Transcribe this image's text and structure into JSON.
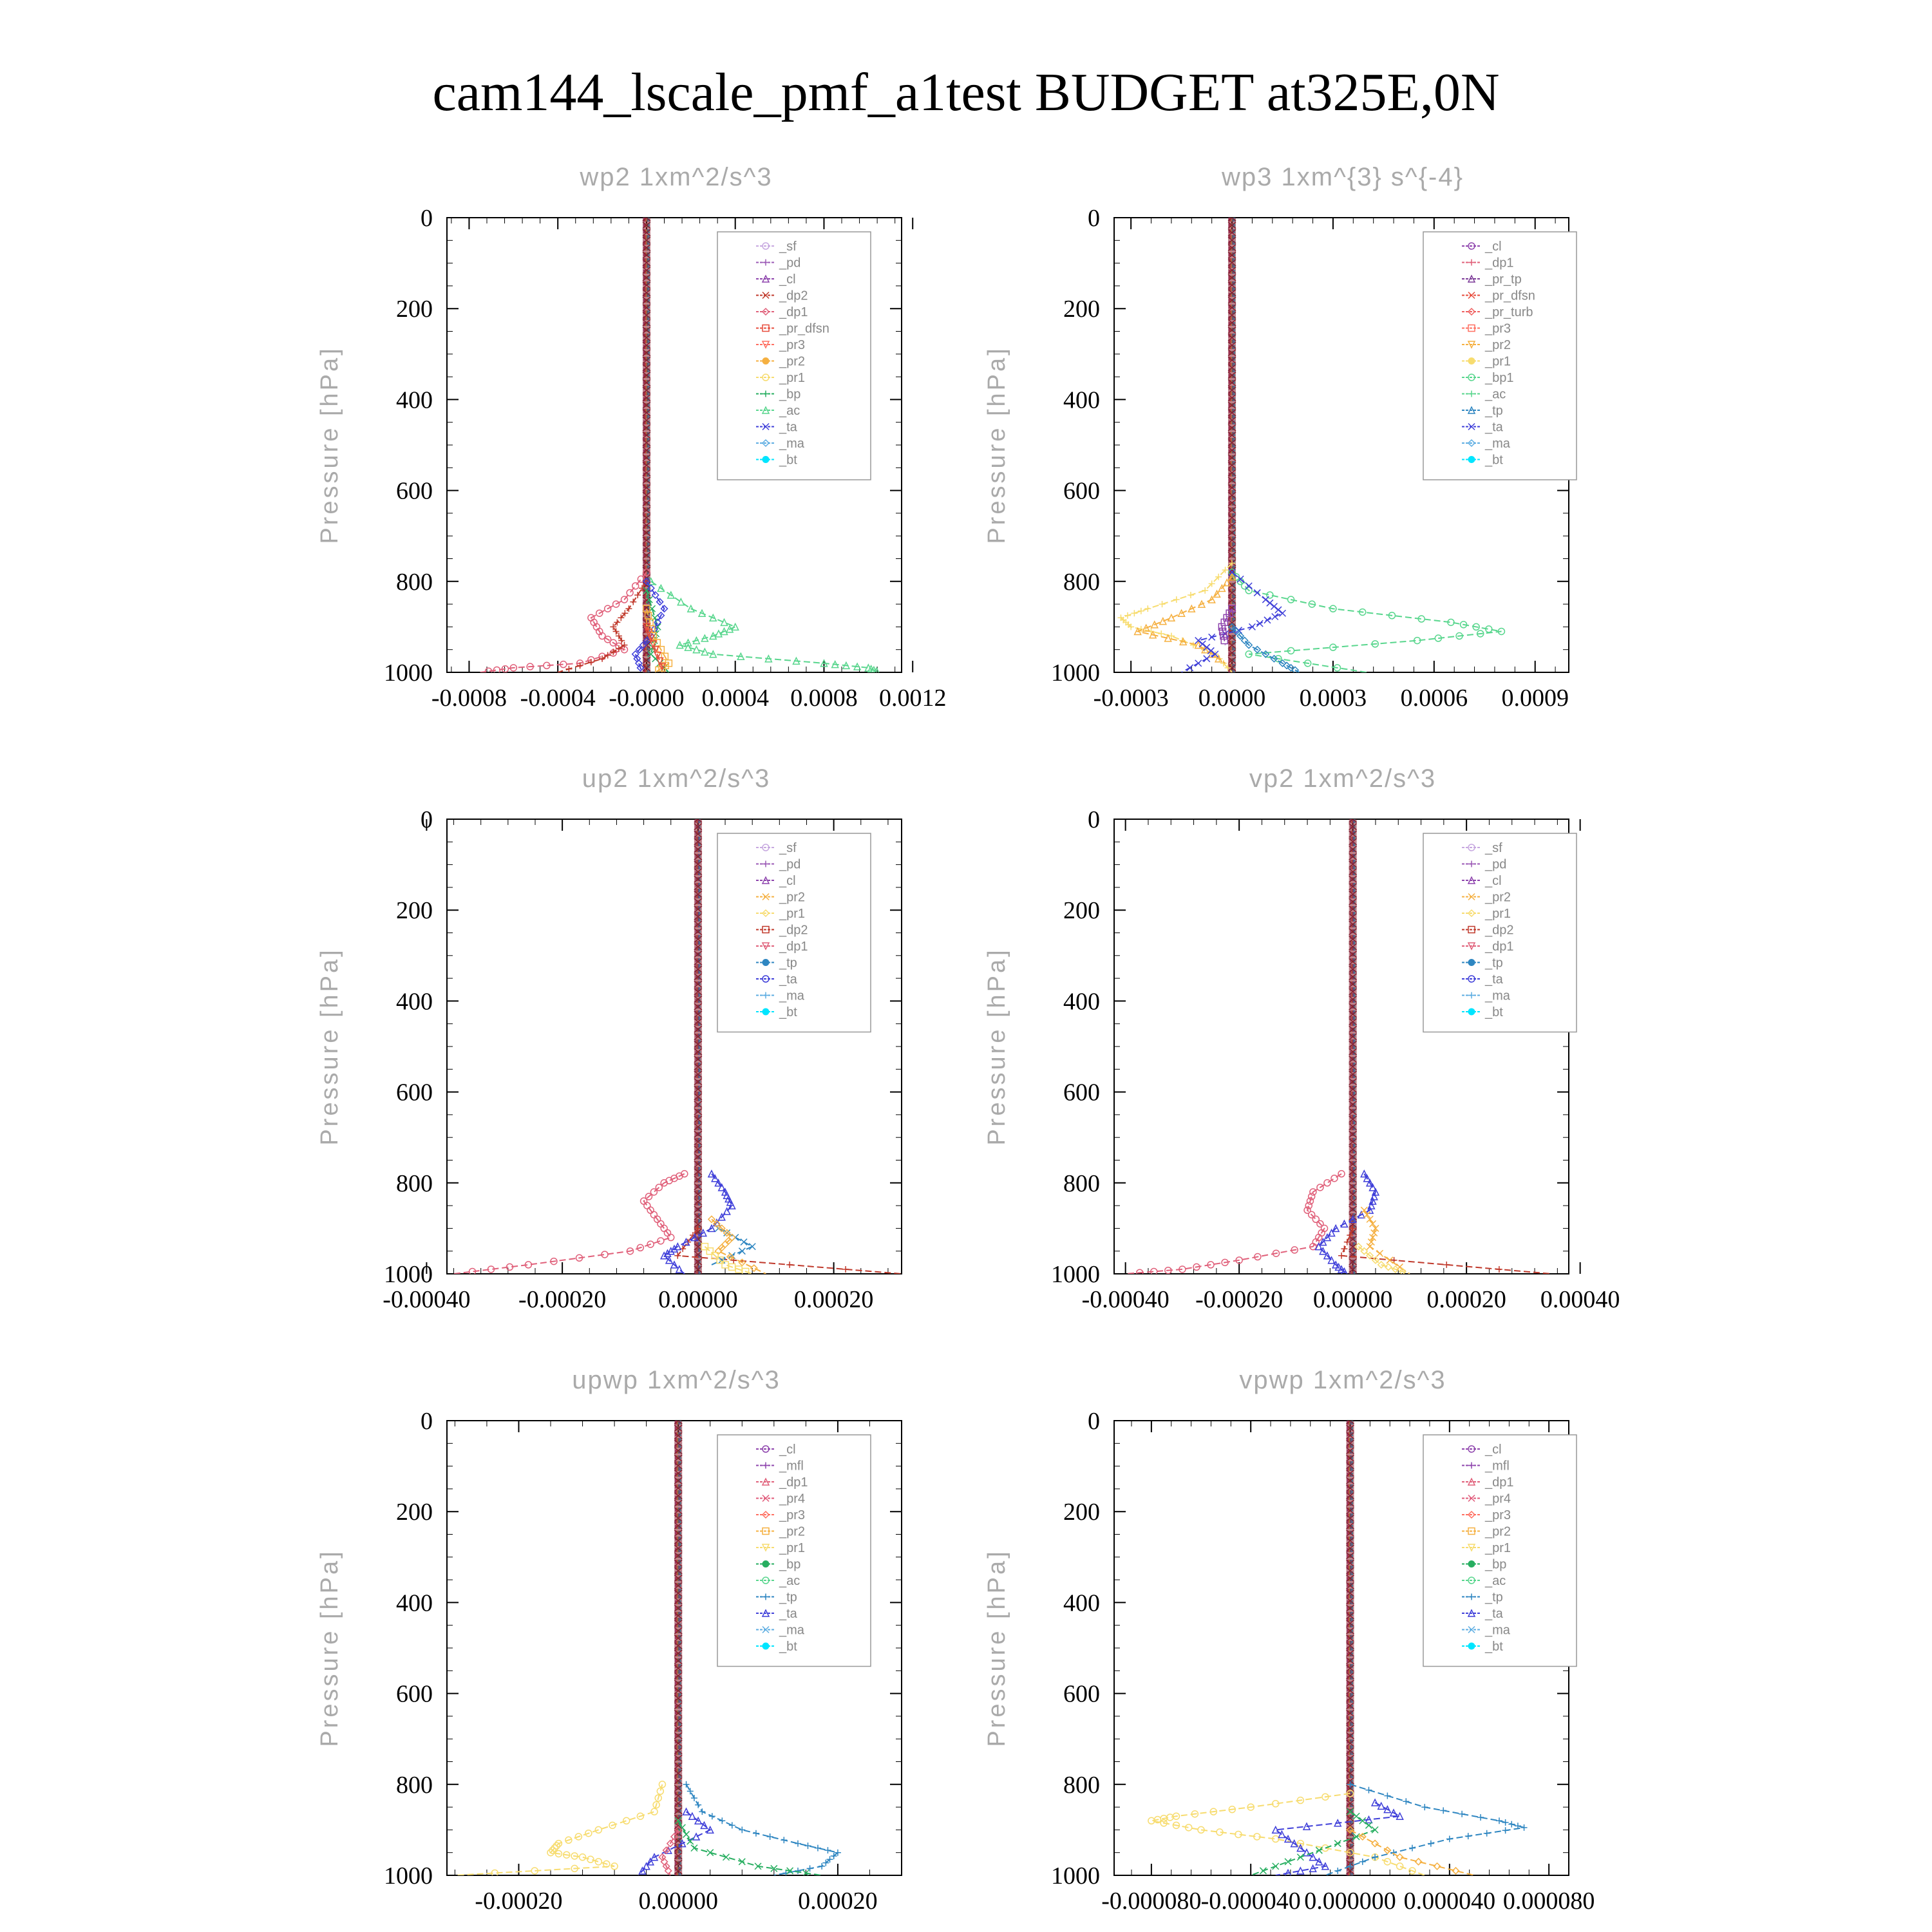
{
  "title": "cam144_lscale_pmf_a1test  BUDGET at325E,0N",
  "colors": {
    "_sf": "#c7a8e0",
    "_pd": "#9b59b6",
    "_cl": "#8e44ad",
    "_dp2": "#c0392b",
    "_dp1": "#e0607a",
    "_pr_dfsn": "#e74c3c",
    "_pr_tp": "#7d3c98",
    "_pr_turb": "#ef6060",
    "_pr3": "#ff6f61",
    "_pr2": "#f5b041",
    "_pr1": "#f7dc6f",
    "_pr4": "#e05a7a",
    "_bp": "#27ae60",
    "_bp1": "#58d68d",
    "_ac": "#58d68d",
    "_tp": "#2e86c1",
    "_ta": "#3f3fd9",
    "_ma": "#5dade2",
    "_bt": "#00e5ff",
    "_mfl": "#8e44ad"
  },
  "chart_data": [
    {
      "type": "line",
      "title": "wp2   1xm^2/s^3",
      "ylabel": "Pressure [hPa]",
      "ylim": [
        1000,
        0
      ],
      "xlim": [
        -0.0009,
        0.00115
      ],
      "xticks": [
        "-0.0008",
        "-0.0004",
        "-0.0000",
        "0.0004",
        "0.0008",
        "0.0012"
      ],
      "xtick_values": [
        -0.0008,
        -0.0004,
        0.0,
        0.0004,
        0.0008,
        0.0012
      ],
      "yticks": [
        "0",
        "200",
        "400",
        "600",
        "800",
        "1000"
      ],
      "legend": [
        "_sf",
        "_pd",
        "_cl",
        "_dp2",
        "_dp1",
        "_pr_dfsn",
        "_pr3",
        "_pr2",
        "_pr1",
        "_bp",
        "_ac",
        "_ta",
        "_ma",
        "_bt"
      ],
      "series": [
        {
          "name": "_dp1",
          "p": [
            780,
            840,
            880,
            920,
            950,
            980,
            990,
            1000
          ],
          "x": [
            0,
            -0.0001,
            -0.00025,
            -0.0002,
            -0.0001,
            -0.0003,
            -0.0006,
            -0.00075
          ]
        },
        {
          "name": "_dp2",
          "p": [
            800,
            860,
            900,
            940,
            970,
            1000
          ],
          "x": [
            0,
            -8e-05,
            -0.00015,
            -0.0001,
            -0.0002,
            -0.0004
          ]
        },
        {
          "name": "_ac",
          "p": [
            800,
            860,
            900,
            920,
            940,
            960,
            980,
            990,
            1000
          ],
          "x": [
            2e-05,
            0.0002,
            0.0004,
            0.0003,
            0.00015,
            0.0003,
            0.0008,
            0.001,
            0.00105
          ]
        },
        {
          "name": "_bp",
          "p": [
            820,
            900,
            960,
            1000
          ],
          "x": [
            0,
            5e-05,
            2e-05,
            0.0001
          ]
        },
        {
          "name": "_ta",
          "p": [
            800,
            860,
            920,
            960,
            1000
          ],
          "x": [
            0,
            8e-05,
            2e-05,
            -5e-05,
            -2e-05
          ]
        },
        {
          "name": "_pr2",
          "p": [
            860,
            920,
            980,
            1000
          ],
          "x": [
            0,
            3e-05,
            0.0001,
            4e-05
          ]
        },
        {
          "name": "_pr_dfsn",
          "p": [
            900,
            950,
            1000
          ],
          "x": [
            0,
            4e-05,
            8e-05
          ]
        }
      ]
    },
    {
      "type": "line",
      "title": "wp3   1xm^{3} s^{-4}",
      "ylabel": "Pressure [hPa]",
      "ylim": [
        1000,
        0
      ],
      "xlim": [
        -0.00035,
        0.001
      ],
      "xticks": [
        "-0.0003",
        "0.0000",
        "0.0003",
        "0.0006",
        "0.0009"
      ],
      "xtick_values": [
        -0.0003,
        0.0,
        0.0003,
        0.0006,
        0.0009
      ],
      "yticks": [
        "0",
        "200",
        "400",
        "600",
        "800",
        "1000"
      ],
      "legend": [
        "_cl",
        "_dp1",
        "_pr_tp",
        "_pr_dfsn",
        "_pr_turb",
        "_pr3",
        "_pr2",
        "_pr1",
        "_bp1",
        "_ac",
        "_tp",
        "_ta",
        "_ma",
        "_bt"
      ],
      "series": [
        {
          "name": "_bp1",
          "p": [
            780,
            820,
            860,
            890,
            910,
            930,
            960,
            1000
          ],
          "x": [
            0,
            5e-05,
            0.0003,
            0.00065,
            0.0008,
            0.00055,
            5e-05,
            0.0004
          ]
        },
        {
          "name": "_pr1",
          "p": [
            760,
            820,
            860,
            880,
            900,
            920,
            960,
            1000
          ],
          "x": [
            0,
            -8e-05,
            -0.00025,
            -0.00033,
            -0.0003,
            -0.00018,
            -5e-05,
            0
          ]
        },
        {
          "name": "_pr2",
          "p": [
            790,
            840,
            880,
            910,
            940,
            980
          ],
          "x": [
            0,
            -6e-05,
            -0.00018,
            -0.00028,
            -0.0001,
            -2e-05
          ]
        },
        {
          "name": "_ta",
          "p": [
            780,
            840,
            870,
            900,
            930,
            960,
            1000
          ],
          "x": [
            0,
            0.0001,
            0.00015,
            6e-05,
            -0.0001,
            -5e-05,
            -0.00015
          ]
        },
        {
          "name": "_tp",
          "p": [
            900,
            940,
            980,
            1000
          ],
          "x": [
            0,
            5e-05,
            0.00015,
            0.0002
          ]
        },
        {
          "name": "_cl",
          "p": [
            860,
            900,
            940
          ],
          "x": [
            0,
            -3e-05,
            -2e-05
          ]
        }
      ]
    },
    {
      "type": "line",
      "title": "up2   1xm^2/s^3",
      "ylabel": "Pressure [hPa]",
      "ylim": [
        1000,
        0
      ],
      "xlim": [
        -0.00037,
        0.0003
      ],
      "xticks": [
        "-0.00040",
        "-0.00020",
        "0.00000",
        "0.00020"
      ],
      "xtick_values": [
        -0.0004,
        -0.0002,
        0.0,
        0.0002
      ],
      "yticks": [
        "0",
        "200",
        "400",
        "600",
        "800",
        "1000"
      ],
      "legend": [
        "_sf",
        "_pd",
        "_cl",
        "_pr2",
        "_pr1",
        "_dp2",
        "_dp1",
        "_tp",
        "_ta",
        "_ma",
        "_bt"
      ],
      "series": [
        {
          "name": "_dp1",
          "p": [
            780,
            800,
            840,
            880,
            920,
            950,
            980,
            1000
          ],
          "x": [
            -2e-05,
            -5e-05,
            -8e-05,
            -6e-05,
            -4e-05,
            -0.0001,
            -0.00025,
            -0.00036
          ]
        },
        {
          "name": "_dp2",
          "p": [
            900,
            960,
            1000
          ],
          "x": [
            0,
            -3e-05,
            0.0003
          ]
        },
        {
          "name": "_ta",
          "p": [
            780,
            820,
            850,
            900,
            940,
            960,
            1000
          ],
          "x": [
            2e-05,
            4e-05,
            5e-05,
            2e-05,
            -3e-05,
            -5e-05,
            -2e-05
          ]
        },
        {
          "name": "_tp",
          "p": [
            900,
            940,
            980
          ],
          "x": [
            3e-05,
            8e-05,
            2e-05
          ]
        },
        {
          "name": "_pr2",
          "p": [
            880,
            920,
            950,
            1000
          ],
          "x": [
            2e-05,
            5e-05,
            3e-05,
            0.0001
          ]
        },
        {
          "name": "_pr1",
          "p": [
            940,
            980,
            1000
          ],
          "x": [
            1e-05,
            4e-05,
            8e-05
          ]
        }
      ]
    },
    {
      "type": "line",
      "title": "vp2   1xm^2/s^3",
      "ylabel": "Pressure [hPa]",
      "ylim": [
        1000,
        0
      ],
      "xlim": [
        -0.00042,
        0.00038
      ],
      "xticks": [
        "-0.00040",
        "-0.00020",
        "0.00000",
        "0.00020",
        "0.00040"
      ],
      "xtick_values": [
        -0.0004,
        -0.0002,
        0.0,
        0.0002,
        0.0004
      ],
      "yticks": [
        "0",
        "200",
        "400",
        "600",
        "800",
        "1000"
      ],
      "legend": [
        "_sf",
        "_pd",
        "_cl",
        "_pr2",
        "_pr1",
        "_dp2",
        "_dp1",
        "_tp",
        "_ta",
        "_ma",
        "_bt"
      ],
      "series": [
        {
          "name": "_dp1",
          "p": [
            780,
            820,
            860,
            900,
            940,
            970,
            990,
            1000
          ],
          "x": [
            -2e-05,
            -7e-05,
            -8e-05,
            -5e-05,
            -7e-05,
            -0.0002,
            -0.0003,
            -0.0004
          ]
        },
        {
          "name": "_dp2",
          "p": [
            900,
            960,
            1000
          ],
          "x": [
            0,
            -2e-05,
            0.00035
          ]
        },
        {
          "name": "_ta",
          "p": [
            780,
            820,
            860,
            900,
            940,
            980,
            1000
          ],
          "x": [
            2e-05,
            4e-05,
            3e-05,
            -3e-05,
            -6e-05,
            -3e-05,
            -1e-05
          ]
        },
        {
          "name": "_pr2",
          "p": [
            860,
            900,
            940,
            1000
          ],
          "x": [
            2e-05,
            4e-05,
            3e-05,
            0.0001
          ]
        },
        {
          "name": "_pr1",
          "p": [
            940,
            980,
            1000
          ],
          "x": [
            1e-05,
            5e-05,
            0.0001
          ]
        }
      ]
    },
    {
      "type": "line",
      "title": "upwp   1xm^2/s^3",
      "ylabel": "Pressure [hPa]",
      "ylim": [
        1000,
        0
      ],
      "xlim": [
        -0.00029,
        0.00028
      ],
      "xticks": [
        "-0.00020",
        "0.00000",
        "0.00020"
      ],
      "xtick_values": [
        -0.0002,
        0.0,
        0.0002
      ],
      "yticks": [
        "0",
        "200",
        "400",
        "600",
        "800",
        "1000"
      ],
      "legend": [
        "_cl",
        "_mfl",
        "_dp1",
        "_pr4",
        "_pr3",
        "_pr2",
        "_pr1",
        "_bp",
        "_ac",
        "_tp",
        "_ta",
        "_ma",
        "_bt"
      ],
      "series": [
        {
          "name": "_pr1",
          "p": [
            800,
            860,
            900,
            930,
            950,
            960,
            980,
            1000
          ],
          "x": [
            -2e-05,
            -3e-05,
            -0.0001,
            -0.00015,
            -0.00016,
            -0.00012,
            -8e-05,
            -0.00028
          ]
        },
        {
          "name": "_tp",
          "p": [
            800,
            860,
            900,
            930,
            950,
            980,
            1000
          ],
          "x": [
            1e-05,
            3e-05,
            8e-05,
            0.00015,
            0.0002,
            0.00018,
            0.00012
          ]
        },
        {
          "name": "_ta",
          "p": [
            860,
            900,
            960,
            1000
          ],
          "x": [
            1e-05,
            4e-05,
            -3e-05,
            -5e-05
          ]
        },
        {
          "name": "_bp",
          "p": [
            880,
            940,
            980,
            1000
          ],
          "x": [
            0,
            2e-05,
            0.0001,
            0.00018
          ]
        },
        {
          "name": "_dp1",
          "p": [
            900,
            960,
            1000
          ],
          "x": [
            0,
            -2e-05,
            -1e-05
          ]
        }
      ]
    },
    {
      "type": "line",
      "title": "vpwp   1xm^2/s^3",
      "ylabel": "Pressure [hPa]",
      "ylim": [
        1000,
        0
      ],
      "xlim": [
        -9.5e-05,
        8.8e-05
      ],
      "xticks": [
        "-0.000080",
        "-0.000040",
        "0.000000",
        "0.000040",
        "0.000080"
      ],
      "xtick_values": [
        -8e-05,
        -4e-05,
        0.0,
        4e-05,
        8e-05
      ],
      "yticks": [
        "0",
        "200",
        "400",
        "600",
        "800",
        "1000"
      ],
      "legend": [
        "_cl",
        "_mfl",
        "_dp1",
        "_pr4",
        "_pr3",
        "_pr2",
        "_pr1",
        "_bp",
        "_ac",
        "_tp",
        "_ta",
        "_ma",
        "_bt"
      ],
      "series": [
        {
          "name": "_pr1",
          "p": [
            820,
            850,
            870,
            880,
            900,
            920,
            960,
            1000
          ],
          "x": [
            0,
            -4e-05,
            -7e-05,
            -8e-05,
            -6e-05,
            -3e-05,
            1e-05,
            3e-05
          ]
        },
        {
          "name": "_tp",
          "p": [
            800,
            850,
            880,
            895,
            920,
            960,
            1000
          ],
          "x": [
            0,
            3e-05,
            6e-05,
            7e-05,
            4e-05,
            1e-05,
            -1e-05
          ]
        },
        {
          "name": "_ta",
          "p": [
            840,
            870,
            900,
            940,
            980,
            1000
          ],
          "x": [
            1e-05,
            2e-05,
            -3e-05,
            -2e-05,
            -1e-05,
            -3e-05
          ]
        },
        {
          "name": "_bp",
          "p": [
            860,
            900,
            960,
            1000
          ],
          "x": [
            0,
            1e-05,
            -2e-05,
            -4e-05
          ]
        },
        {
          "name": "_pr2",
          "p": [
            900,
            960,
            1000
          ],
          "x": [
            0,
            2e-05,
            5e-05
          ]
        }
      ]
    }
  ]
}
